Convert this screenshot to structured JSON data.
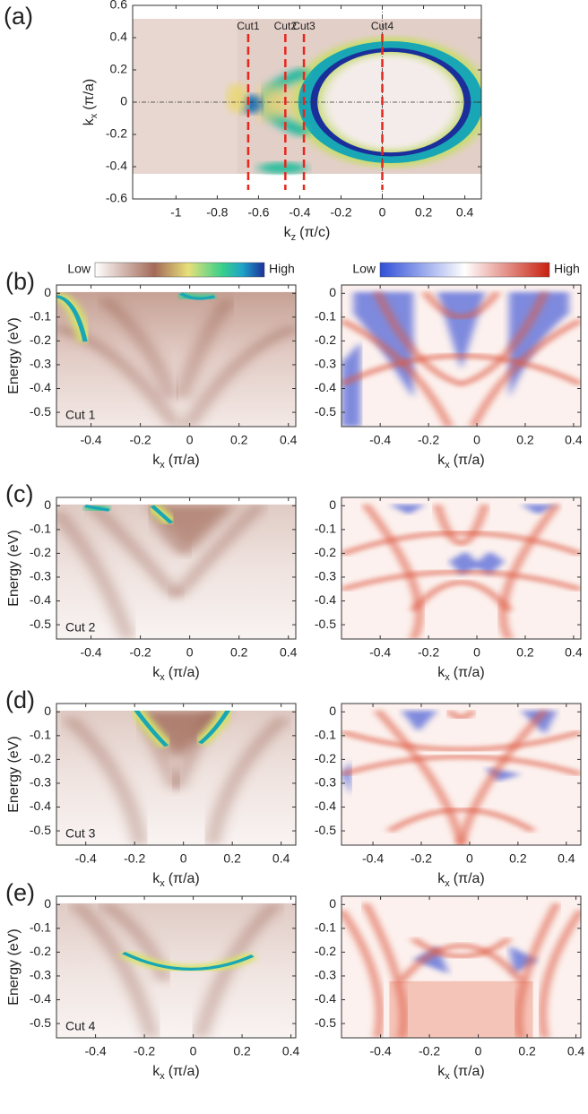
{
  "chart_data": [
    {
      "type": "heatmap",
      "panel": "(a)",
      "style": "fermi",
      "xlabel": {
        "main": "k",
        "sub": "z",
        "unit": "(π/c)"
      },
      "ylabel": {
        "main": "k",
        "sub": "x",
        "unit": "(π/a)"
      },
      "xlim": [
        -1.21,
        0.48
      ],
      "xticks": [
        -1,
        -0.8,
        -0.6,
        -0.4,
        -0.2,
        0,
        0.2,
        0.4
      ],
      "ylim": [
        -0.6,
        0.6
      ],
      "yticks": [
        -0.6,
        -0.4,
        -0.2,
        0,
        0.2,
        0.4,
        0.6
      ],
      "cuts": [
        {
          "label": "Cut1",
          "value": -0.65
        },
        {
          "label": "Cut2",
          "value": -0.47
        },
        {
          "label": "Cut3",
          "value": -0.38
        },
        {
          "label": "Cut4",
          "value": 0
        }
      ],
      "cut_color": "#e8261c"
    },
    {
      "type": "heatmap",
      "panel": "(b)",
      "style": "arpes",
      "annotation": "Cut 1",
      "colorbar": [
        "Low",
        "High"
      ],
      "xlabel": {
        "main": "k",
        "sub": "x",
        "unit": "(π/a)"
      },
      "ylabel": "Energy (eV)",
      "xlim": [
        -0.54,
        0.43
      ],
      "xticks": [
        -0.4,
        -0.2,
        0,
        0.2,
        0.4
      ],
      "ylim": [
        -0.56,
        0.035
      ],
      "yticks": [
        0,
        -0.1,
        -0.2,
        -0.3,
        -0.4,
        -0.5
      ]
    },
    {
      "type": "heatmap",
      "style": "calc",
      "colorbar": [
        "Low",
        "High"
      ],
      "xlabel": {
        "main": "k",
        "sub": "x",
        "unit": "(π/a)"
      },
      "xlim": [
        -0.56,
        0.43
      ],
      "xticks": [
        -0.4,
        -0.2,
        0,
        0.2,
        0.4
      ],
      "ylim": [
        -0.56,
        0.035
      ],
      "yticks": [
        0,
        -0.1,
        -0.2,
        -0.3,
        -0.4,
        -0.5
      ]
    },
    {
      "type": "heatmap",
      "panel": "(c)",
      "style": "arpes",
      "annotation": "Cut 2",
      "xlabel": {
        "main": "k",
        "sub": "x",
        "unit": "(π/a)"
      },
      "ylabel": "Energy (eV)",
      "xlim": [
        -0.54,
        0.43
      ],
      "xticks": [
        -0.4,
        -0.2,
        0,
        0.2,
        0.4
      ],
      "ylim": [
        -0.56,
        0.035
      ],
      "yticks": [
        0,
        -0.1,
        -0.2,
        -0.3,
        -0.4,
        -0.5
      ]
    },
    {
      "type": "heatmap",
      "style": "calc",
      "xlabel": {
        "main": "k",
        "sub": "x",
        "unit": "(π/a)"
      },
      "xlim": [
        -0.56,
        0.43
      ],
      "xticks": [
        -0.4,
        -0.2,
        0,
        0.2,
        0.4
      ],
      "ylim": [
        -0.56,
        0.035
      ],
      "yticks": [
        0,
        -0.1,
        -0.2,
        -0.3,
        -0.4,
        -0.5
      ]
    },
    {
      "type": "heatmap",
      "panel": "(d)",
      "style": "arpes",
      "annotation": "Cut 3",
      "xlabel": {
        "main": "k",
        "sub": "x",
        "unit": "(π/a)"
      },
      "ylabel": "Energy (eV)",
      "xlim": [
        -0.52,
        0.46
      ],
      "xticks": [
        -0.4,
        -0.2,
        0,
        0.2,
        0.4
      ],
      "ylim": [
        -0.56,
        0.035
      ],
      "yticks": [
        0,
        -0.1,
        -0.2,
        -0.3,
        -0.4,
        -0.5
      ]
    },
    {
      "type": "heatmap",
      "style": "calc",
      "xlabel": {
        "main": "k",
        "sub": "x",
        "unit": "(π/a)"
      },
      "xlim": [
        -0.53,
        0.46
      ],
      "xticks": [
        -0.4,
        -0.2,
        0,
        0.2,
        0.4
      ],
      "ylim": [
        -0.56,
        0.035
      ],
      "yticks": [
        0,
        -0.1,
        -0.2,
        -0.3,
        -0.4,
        -0.5
      ]
    },
    {
      "type": "heatmap",
      "panel": "(e)",
      "style": "arpes",
      "annotation": "Cut 4",
      "xlabel": {
        "main": "k",
        "sub": "x",
        "unit": "(π/a)"
      },
      "ylabel": "Energy (eV)",
      "xlim": [
        -0.56,
        0.42
      ],
      "xticks": [
        -0.4,
        -0.2,
        0,
        0.2,
        0.4
      ],
      "ylim": [
        -0.56,
        0.035
      ],
      "yticks": [
        0,
        -0.1,
        -0.2,
        -0.3,
        -0.4,
        -0.5
      ]
    },
    {
      "type": "heatmap",
      "style": "calc",
      "xlabel": {
        "main": "k",
        "sub": "x",
        "unit": "(π/a)"
      },
      "xlim": [
        -0.56,
        0.42
      ],
      "xticks": [
        -0.4,
        -0.2,
        0,
        0.2,
        0.4
      ],
      "ylim": [
        -0.56,
        0.035
      ],
      "yticks": [
        0,
        -0.1,
        -0.2,
        -0.3,
        -0.4,
        -0.5
      ]
    }
  ]
}
